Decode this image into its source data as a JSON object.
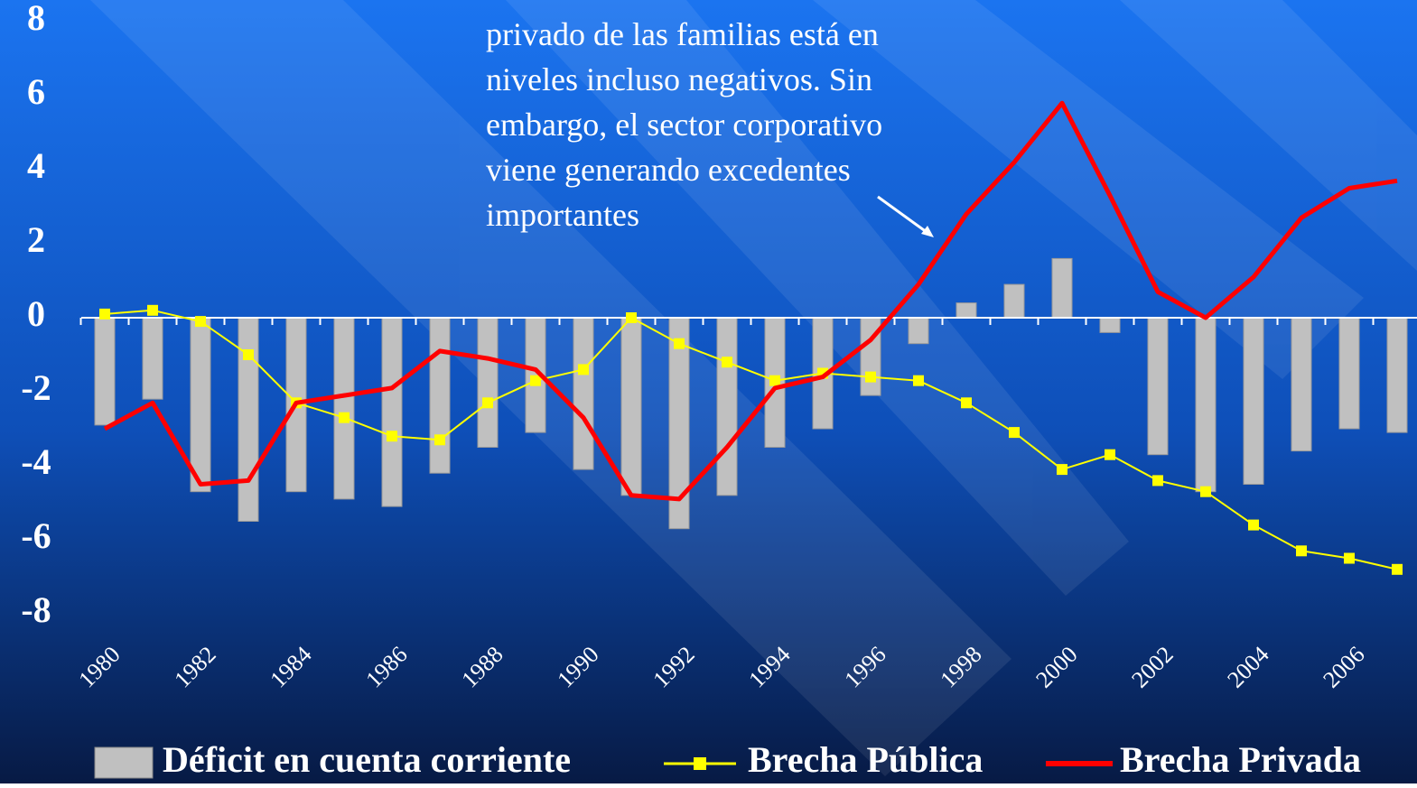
{
  "chart_data": {
    "type": "bar_line",
    "categories": [
      "1980",
      null,
      "1982",
      null,
      "1984",
      null,
      "1986",
      null,
      "1988",
      null,
      "1990",
      null,
      "1992",
      null,
      "1994",
      null,
      "1996",
      null,
      "1998",
      null,
      "2000",
      null,
      "2002",
      null,
      "2004",
      null,
      "2006",
      null
    ],
    "series": [
      {
        "name": "Déficit en cuenta corriente",
        "kind": "bar",
        "color": "#c0c0c0",
        "values": [
          -2.9,
          -2.2,
          -4.7,
          -5.5,
          -4.7,
          -4.9,
          -5.1,
          -4.2,
          -3.5,
          -3.1,
          -4.1,
          -4.8,
          -5.7,
          -4.8,
          -3.5,
          -3.0,
          -2.1,
          -0.7,
          0.4,
          0.9,
          1.6,
          -0.4,
          -3.7,
          -4.7,
          -4.5,
          -3.6,
          -3.0,
          -3.1
        ]
      },
      {
        "name": "Brecha Pública",
        "kind": "line",
        "color": "#ffff00",
        "values": [
          0.1,
          0.2,
          -0.1,
          -1.0,
          -2.3,
          -2.7,
          -3.2,
          -3.3,
          -2.3,
          -1.7,
          -1.4,
          0.0,
          -0.7,
          -1.2,
          -1.7,
          -1.5,
          -1.6,
          -1.7,
          -2.3,
          -3.1,
          -4.1,
          -3.7,
          -4.4,
          -4.7,
          -5.6,
          -6.3,
          -6.5,
          -6.8
        ]
      },
      {
        "name": "Brecha Privada",
        "kind": "line",
        "color": "#ff0000",
        "values": [
          -3.0,
          -2.3,
          -4.5,
          -4.4,
          -2.3,
          -2.1,
          -1.9,
          -0.9,
          -1.1,
          -1.4,
          -2.7,
          -4.8,
          -4.9,
          -3.5,
          -1.9,
          -1.6,
          -0.6,
          0.9,
          2.8,
          4.2,
          5.8,
          3.3,
          0.7,
          0.0,
          1.1,
          2.7,
          3.5,
          3.7
        ]
      }
    ],
    "annotation": [
      "privado de las familias está en",
      "niveles incluso negativos. Sin",
      "embargo, el sector corporativo",
      "viene generando excedentes",
      "importantes"
    ],
    "ylim": [
      -8,
      8
    ],
    "yticks": [
      8,
      6,
      4,
      2,
      0,
      -2,
      -4,
      -6,
      -8
    ]
  }
}
